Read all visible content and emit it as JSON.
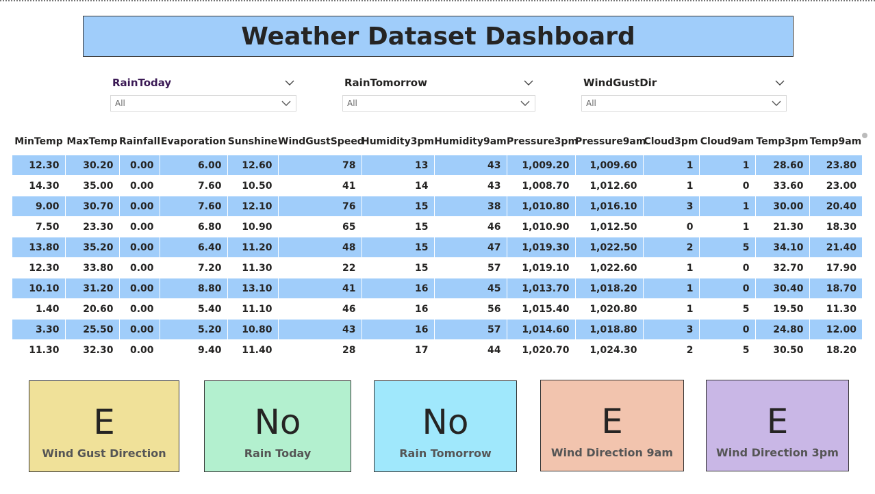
{
  "title": "Weather Dataset Dashboard",
  "slicers": [
    {
      "title": "RainToday",
      "value": "All"
    },
    {
      "title": "RainTomorrow",
      "value": "All"
    },
    {
      "title": "WindGustDir",
      "value": "All"
    }
  ],
  "table": {
    "columns": [
      "MinTemp",
      "MaxTemp",
      "Rainfall",
      "Evaporation",
      "Sunshine",
      "WindGustSpeed",
      "Humidity3pm",
      "Humidity9am",
      "Pressure3pm",
      "Pressure9am",
      "Cloud3pm",
      "Cloud9am",
      "Temp3pm",
      "Temp9am"
    ],
    "rows": [
      [
        "12.30",
        "30.20",
        "0.00",
        "6.00",
        "12.60",
        "78",
        "13",
        "43",
        "1,009.20",
        "1,009.60",
        "1",
        "1",
        "28.60",
        "23.80"
      ],
      [
        "14.30",
        "35.00",
        "0.00",
        "7.60",
        "10.50",
        "41",
        "14",
        "43",
        "1,008.70",
        "1,012.60",
        "1",
        "0",
        "33.60",
        "23.00"
      ],
      [
        "9.00",
        "30.70",
        "0.00",
        "7.60",
        "12.10",
        "76",
        "15",
        "38",
        "1,010.80",
        "1,016.10",
        "3",
        "1",
        "30.00",
        "20.40"
      ],
      [
        "7.50",
        "23.30",
        "0.00",
        "6.80",
        "10.90",
        "65",
        "15",
        "46",
        "1,010.90",
        "1,012.50",
        "0",
        "1",
        "21.30",
        "18.30"
      ],
      [
        "13.80",
        "35.20",
        "0.00",
        "6.40",
        "11.20",
        "48",
        "15",
        "47",
        "1,019.30",
        "1,022.50",
        "2",
        "5",
        "34.10",
        "21.40"
      ],
      [
        "12.30",
        "33.80",
        "0.00",
        "7.20",
        "11.30",
        "22",
        "15",
        "57",
        "1,019.10",
        "1,022.60",
        "1",
        "0",
        "32.70",
        "17.90"
      ],
      [
        "10.10",
        "31.20",
        "0.00",
        "8.80",
        "13.10",
        "41",
        "16",
        "45",
        "1,013.70",
        "1,018.20",
        "1",
        "0",
        "30.40",
        "18.70"
      ],
      [
        "1.40",
        "20.60",
        "0.00",
        "5.40",
        "11.10",
        "46",
        "16",
        "56",
        "1,015.40",
        "1,020.80",
        "1",
        "5",
        "19.50",
        "11.30"
      ],
      [
        "3.30",
        "25.50",
        "0.00",
        "5.20",
        "10.80",
        "43",
        "16",
        "57",
        "1,014.60",
        "1,018.80",
        "3",
        "0",
        "24.80",
        "12.00"
      ],
      [
        "11.30",
        "32.30",
        "0.00",
        "9.40",
        "11.40",
        "28",
        "17",
        "44",
        "1,020.70",
        "1,024.30",
        "2",
        "5",
        "30.50",
        "18.20"
      ]
    ]
  },
  "cards": [
    {
      "value": "E",
      "label": "Wind Gust Direction",
      "color": "#f0e199"
    },
    {
      "value": "No",
      "label": "Rain Today",
      "color": "#b3f0cf"
    },
    {
      "value": "No",
      "label": "Rain Tomorrow",
      "color": "#a0e8fc"
    },
    {
      "value": "E",
      "label": "Wind Direction 9am",
      "color": "#f2c4ae"
    },
    {
      "value": "E",
      "label": "Wind Direction 3pm",
      "color": "#c9b7e6"
    }
  ],
  "colors": {
    "header_band": "#a0cdfa",
    "row_band": "#a0cdfa"
  },
  "icons": {
    "slicer_expand": "chevron-down-icon",
    "dropdown": "chevron-down-icon"
  }
}
